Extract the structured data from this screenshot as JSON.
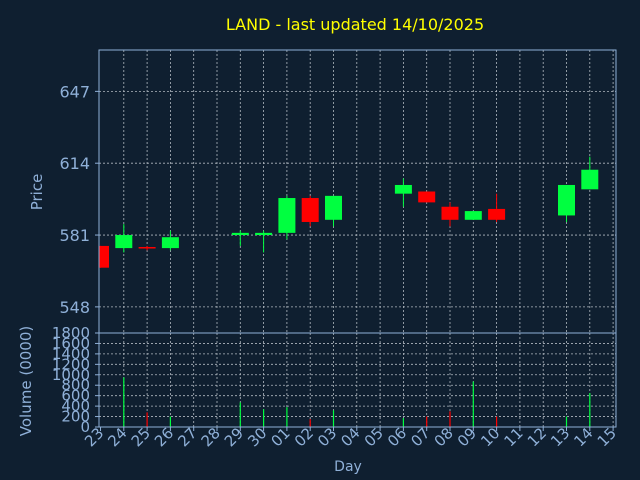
{
  "chart_data": {
    "type": "candlestick",
    "title": "LAND - last updated 14/10/2025",
    "xlabel": "Day",
    "ylabel": "Price",
    "volume_ylabel": "Volume (0000)",
    "grid": true,
    "x": [
      "23",
      "24",
      "25",
      "26",
      "27",
      "28",
      "29",
      "30",
      "01",
      "02",
      "03",
      "04",
      "05",
      "06",
      "07",
      "08",
      "09",
      "10",
      "11",
      "12",
      "13",
      "14",
      "15"
    ],
    "price_ticks": [
      548,
      581,
      614,
      647
    ],
    "price_ylim": [
      536,
      666
    ],
    "volume_ticks": [
      0,
      200,
      400,
      600,
      800,
      1000,
      1200,
      1400,
      1600,
      1800
    ],
    "volume_ylim": [
      0,
      1800
    ],
    "candles": [
      {
        "day": "23",
        "open": 576,
        "close": 566,
        "high": 576,
        "low": 566
      },
      {
        "day": "24",
        "open": 575,
        "close": 581,
        "high": 586,
        "low": 573
      },
      {
        "day": "25",
        "open": 575.5,
        "close": 575,
        "high": 576,
        "low": 574
      },
      {
        "day": "26",
        "open": 575,
        "close": 580,
        "high": 583,
        "low": 574
      },
      {
        "day": "29",
        "open": 581,
        "close": 582,
        "high": 583,
        "low": 576
      },
      {
        "day": "30",
        "open": 581,
        "close": 582,
        "high": 583,
        "low": 573
      },
      {
        "day": "01",
        "open": 582,
        "close": 598,
        "high": 599,
        "low": 579
      },
      {
        "day": "02",
        "open": 598,
        "close": 587,
        "high": 599,
        "low": 585
      },
      {
        "day": "03",
        "open": 588,
        "close": 599,
        "high": 599,
        "low": 585
      },
      {
        "day": "06",
        "open": 600,
        "close": 604,
        "high": 607,
        "low": 594
      },
      {
        "day": "07",
        "open": 601,
        "close": 596,
        "high": 601,
        "low": 596
      },
      {
        "day": "08",
        "open": 594,
        "close": 588,
        "high": 596,
        "low": 585
      },
      {
        "day": "09",
        "open": 588,
        "close": 592,
        "high": 592,
        "low": 588
      },
      {
        "day": "10",
        "open": 593,
        "close": 588,
        "high": 600,
        "low": 587
      },
      {
        "day": "13",
        "open": 590,
        "close": 604,
        "high": 604,
        "low": 587
      },
      {
        "day": "14",
        "open": 602,
        "close": 611,
        "high": 617,
        "low": 602
      }
    ],
    "volume": [
      {
        "day": "23",
        "value": 0,
        "dir": "down"
      },
      {
        "day": "24",
        "value": 950,
        "dir": "up"
      },
      {
        "day": "25",
        "value": 280,
        "dir": "down"
      },
      {
        "day": "26",
        "value": 200,
        "dir": "up"
      },
      {
        "day": "29",
        "value": 470,
        "dir": "up"
      },
      {
        "day": "30",
        "value": 340,
        "dir": "up"
      },
      {
        "day": "01",
        "value": 380,
        "dir": "up"
      },
      {
        "day": "02",
        "value": 150,
        "dir": "down"
      },
      {
        "day": "03",
        "value": 320,
        "dir": "up"
      },
      {
        "day": "06",
        "value": 170,
        "dir": "up"
      },
      {
        "day": "07",
        "value": 200,
        "dir": "down"
      },
      {
        "day": "08",
        "value": 300,
        "dir": "down"
      },
      {
        "day": "09",
        "value": 870,
        "dir": "up"
      },
      {
        "day": "10",
        "value": 200,
        "dir": "down"
      },
      {
        "day": "13",
        "value": 200,
        "dir": "up"
      },
      {
        "day": "14",
        "value": 650,
        "dir": "up"
      }
    ],
    "colors": {
      "background": "#0f1f30",
      "title": "#ffff00",
      "axis_text": "#8fb0d8",
      "frame": "#8fb0d8",
      "grid": "#b0b8c0",
      "up": "#00ff40",
      "down": "#ff0000"
    }
  }
}
